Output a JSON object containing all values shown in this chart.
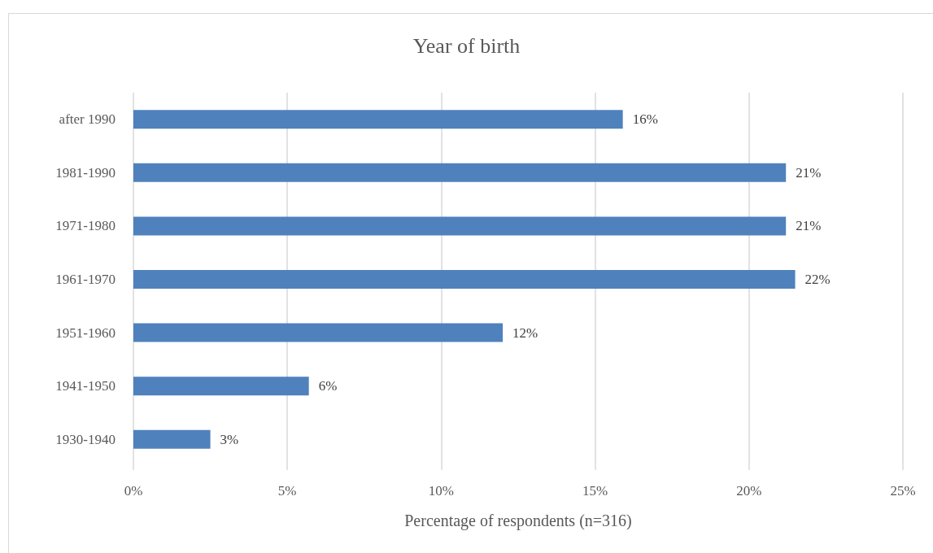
{
  "chart_data": {
    "type": "bar",
    "orientation": "horizontal",
    "title": "Year of birth",
    "xlabel": "Percentage of respondents (n=316)",
    "categories": [
      "after 1990",
      "1981-1990",
      "1971-1980",
      "1961-1970",
      "1951-1960",
      "1941-1950",
      "1930-1940"
    ],
    "values": [
      15.9,
      21.2,
      21.2,
      21.5,
      12.0,
      5.7,
      2.5
    ],
    "value_labels": [
      "16%",
      "21%",
      "21%",
      "22%",
      "12%",
      "6%",
      "3%"
    ],
    "color": "#4f81bd",
    "xlim": [
      0,
      25
    ],
    "xticks": [
      {
        "value": 0,
        "label": "0%"
      },
      {
        "value": 5,
        "label": "5%"
      },
      {
        "value": 10,
        "label": "10%"
      },
      {
        "value": 15,
        "label": "15%"
      },
      {
        "value": 20,
        "label": "20%"
      },
      {
        "value": 25,
        "label": "25%"
      }
    ],
    "grid": "x"
  }
}
